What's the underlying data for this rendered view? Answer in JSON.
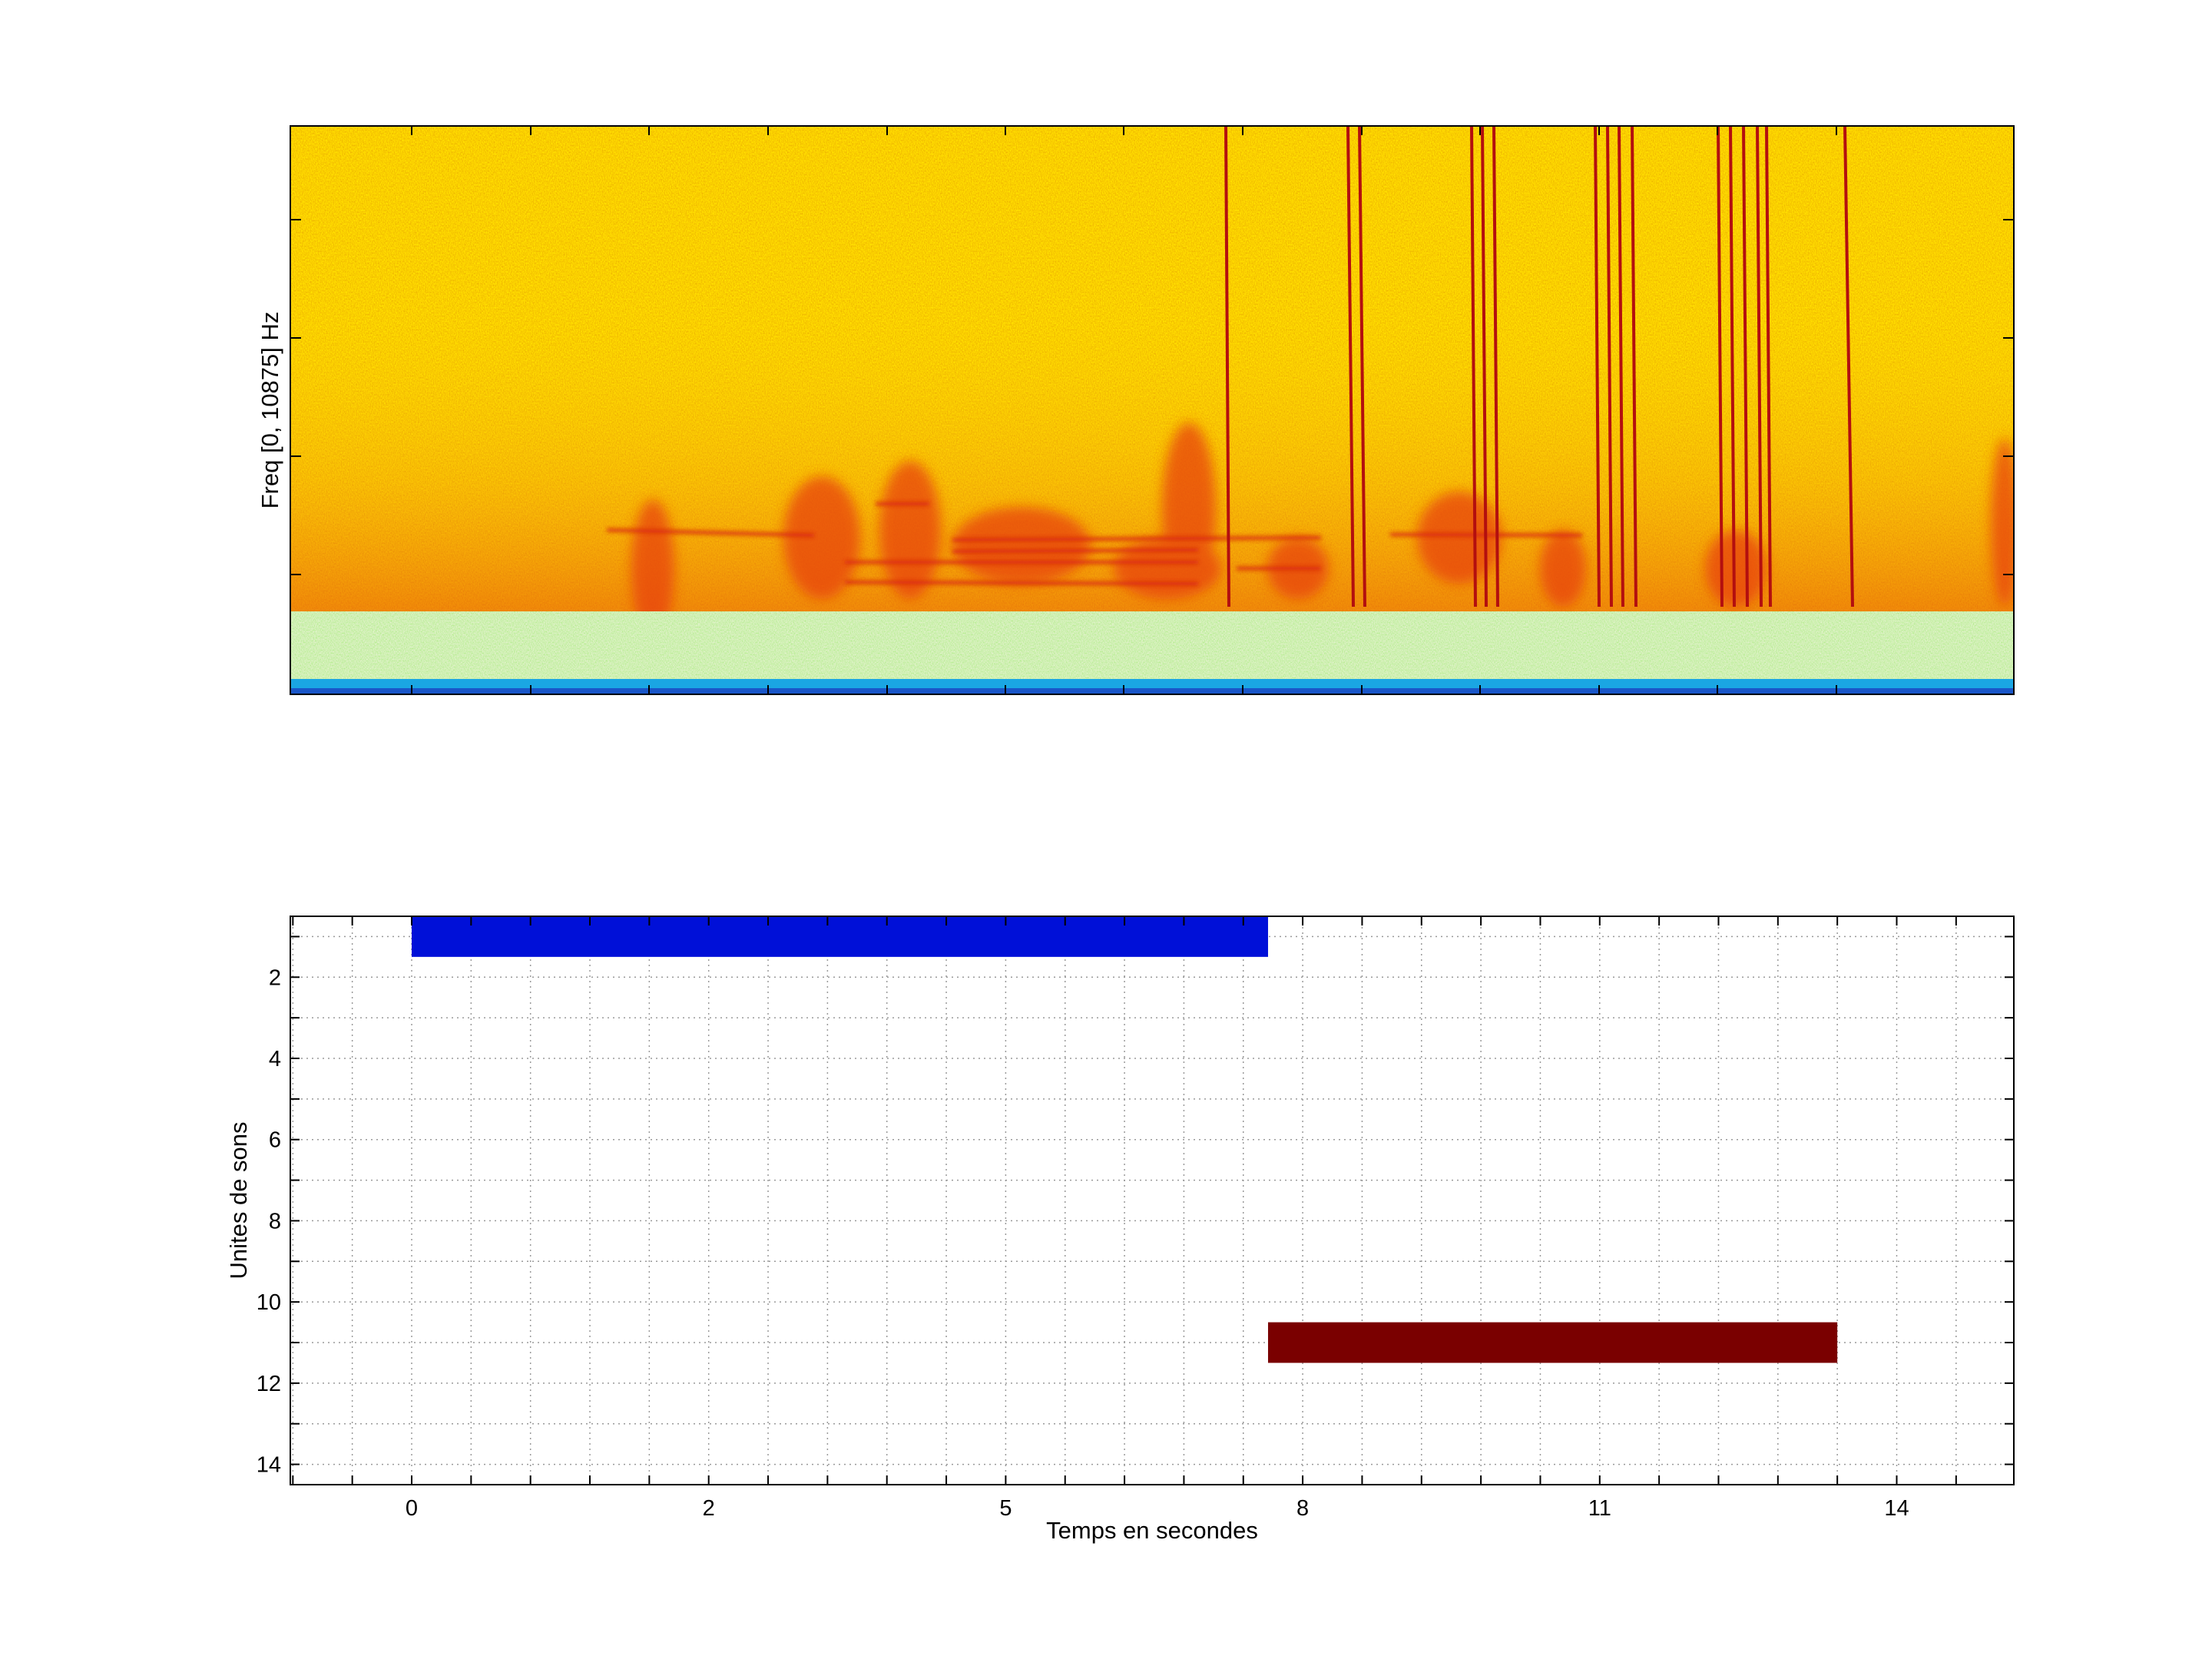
{
  "chart_data": [
    {
      "type": "heatmap",
      "title": "",
      "xlabel": "",
      "ylabel": "Freq [0, 10875] Hz",
      "ylim": [
        0,
        10875
      ],
      "x_tick_labels": [],
      "y_tick_labels": [],
      "colormap": "jet",
      "colors": {
        "background": "#f5a623",
        "band_low": "#9cf07a",
        "band_floor": "#1fb0e6",
        "energy": "#e8420e",
        "strong_lines": "#b30f0f"
      },
      "grid": false
    },
    {
      "type": "bar",
      "title": "",
      "xlabel": "Temps en secondes",
      "ylabel": "Unites de sons",
      "x_tick_labels": [
        "0",
        "2",
        "5",
        "8",
        "11",
        "14"
      ],
      "y_tick_labels": [
        "2",
        "4",
        "6",
        "8",
        "10",
        "12",
        "14"
      ],
      "y_ticks": [
        2,
        4,
        6,
        8,
        10,
        12,
        14
      ],
      "ylim": [
        0.5,
        14.5
      ],
      "y_reversed": true,
      "grid": true,
      "series": [
        {
          "unit": 1,
          "start": 0,
          "end": 7.65,
          "color": "#0010d8"
        },
        {
          "unit": 11,
          "start": 7.65,
          "end": 13.4,
          "color": "#7a0000"
        }
      ]
    }
  ]
}
